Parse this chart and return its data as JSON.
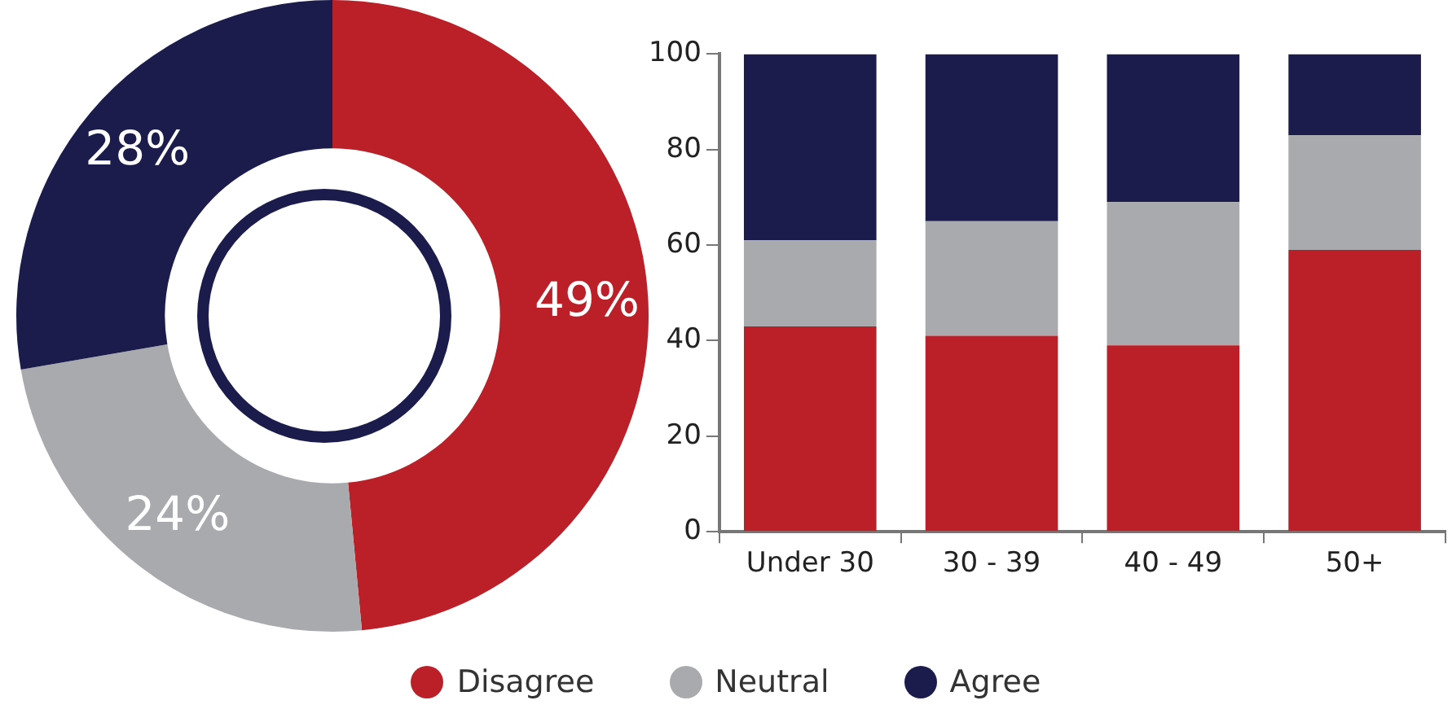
{
  "chart_data": [
    {
      "type": "donut",
      "categories": [
        "Disagree",
        "Neutral",
        "Agree"
      ],
      "values": [
        49,
        24,
        28
      ],
      "colors": [
        "#bb2029",
        "#a9aaad",
        "#1b1c4c"
      ],
      "value_labels": [
        "49%",
        "24%",
        "28%"
      ],
      "legend": "bottom"
    },
    {
      "type": "bar",
      "stacked": true,
      "categories": [
        "Under 30",
        "30 - 39",
        "40 - 49",
        "50+"
      ],
      "series": [
        {
          "color": "#bb2029",
          "values": [
            43,
            41,
            39,
            59
          ]
        },
        {
          "color": "#a9aaad",
          "values": [
            18,
            24,
            30,
            24
          ]
        },
        {
          "color": "#1b1c4c",
          "values": [
            39,
            35,
            31,
            17
          ]
        }
      ],
      "ylim": [
        0,
        100
      ],
      "yticks": [
        0,
        20,
        40,
        60,
        80,
        100
      ],
      "grid": false
    }
  ]
}
